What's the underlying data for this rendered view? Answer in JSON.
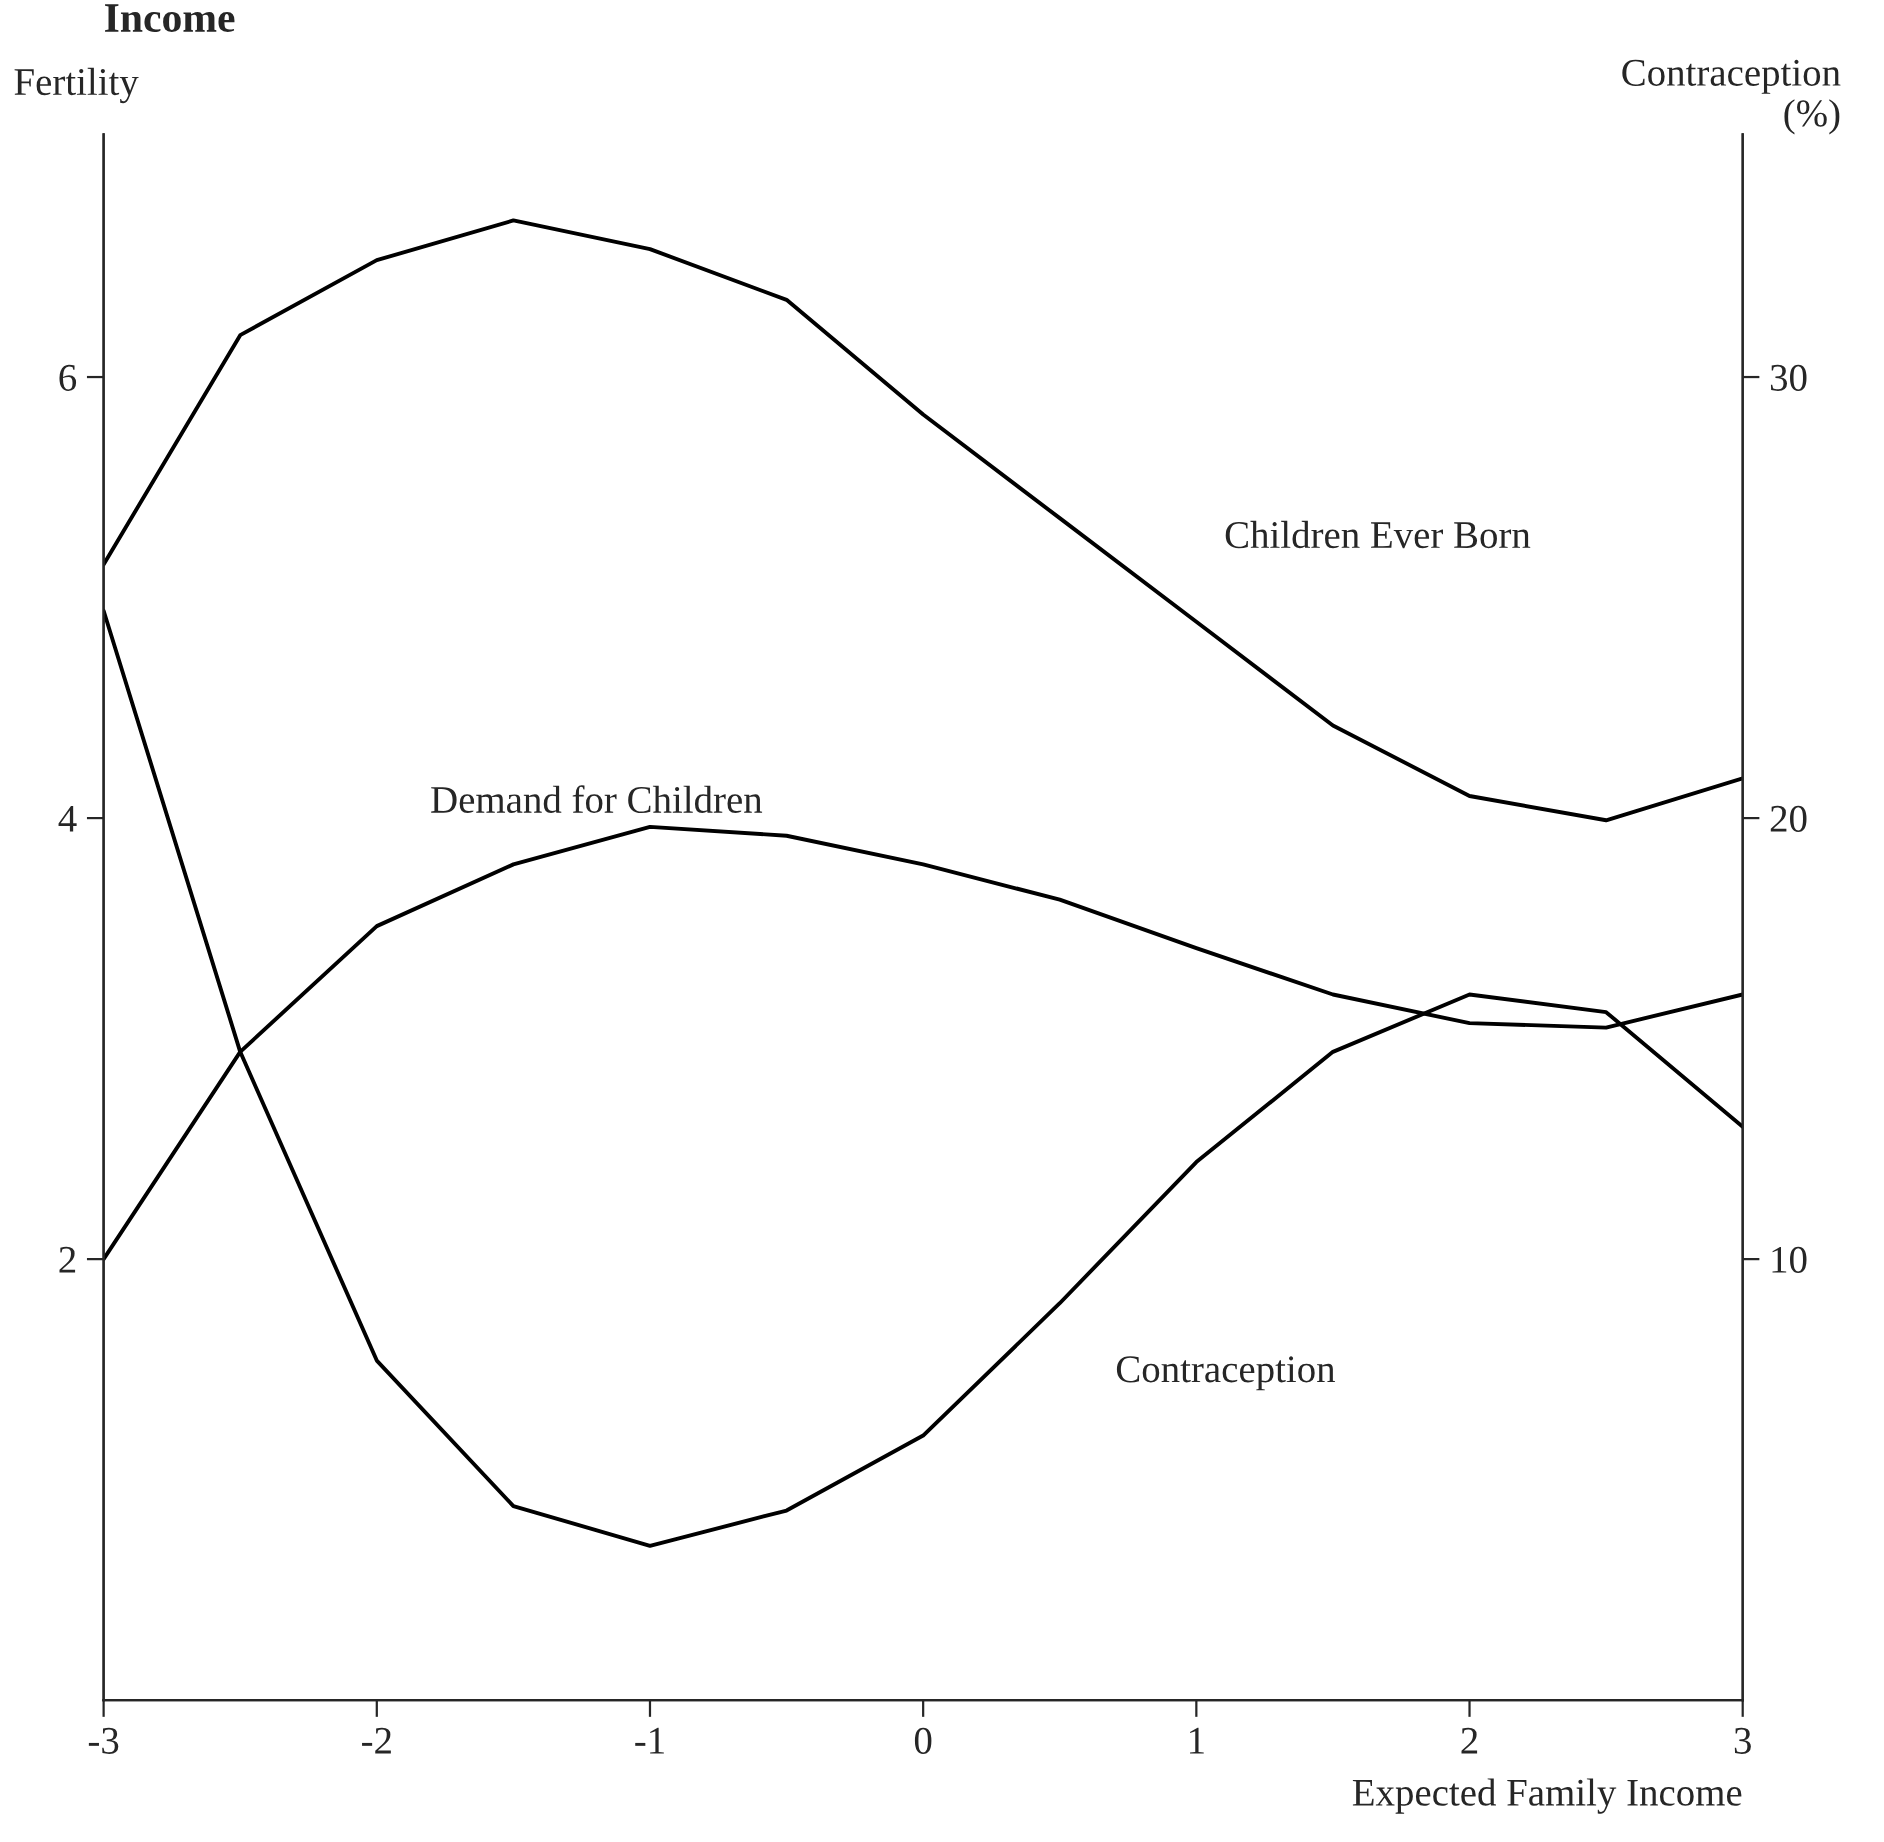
{
  "chart_data": {
    "type": "line",
    "title": "Income",
    "xlabel": "Expected Family Income",
    "ylabel": "Fertility",
    "y2label": "Contraception\n(%)",
    "x": [
      -3,
      -2.5,
      -2,
      -1.5,
      -1,
      -0.5,
      0,
      0.5,
      1,
      1.5,
      2,
      2.5,
      3
    ],
    "series": [
      {
        "name": "Children Ever Born",
        "color": "#000000",
        "values": [
          5.15,
          6.19,
          6.53,
          6.71,
          6.58,
          6.35,
          5.83,
          5.36,
          4.89,
          4.42,
          4.1,
          3.99,
          4.18
        ]
      },
      {
        "name": "Demand for Children",
        "color": "#000000",
        "values": [
          2.0,
          2.94,
          3.51,
          3.79,
          3.96,
          3.92,
          3.79,
          3.63,
          3.41,
          3.2,
          3.07,
          3.05,
          3.2
        ]
      },
      {
        "name": "Contraception",
        "color": "#000000",
        "axis": "y2",
        "values": [
          24.7,
          14.7,
          7.7,
          4.4,
          3.5,
          4.3,
          6.0,
          9.0,
          12.2,
          14.7,
          16.0,
          15.6,
          13.0
        ]
      }
    ],
    "xlim": [
      -3,
      3
    ],
    "xticks": [
      -3,
      -2,
      -1,
      0,
      1,
      2,
      3
    ],
    "ylim": [
      0,
      7.1
    ],
    "yticks": [
      2,
      4,
      6
    ],
    "y2lim": [
      0,
      35.5
    ],
    "y2ticks": [
      10,
      20,
      30
    ],
    "grid": false,
    "legend": false,
    "line_style": "solid",
    "marker": "none"
  }
}
